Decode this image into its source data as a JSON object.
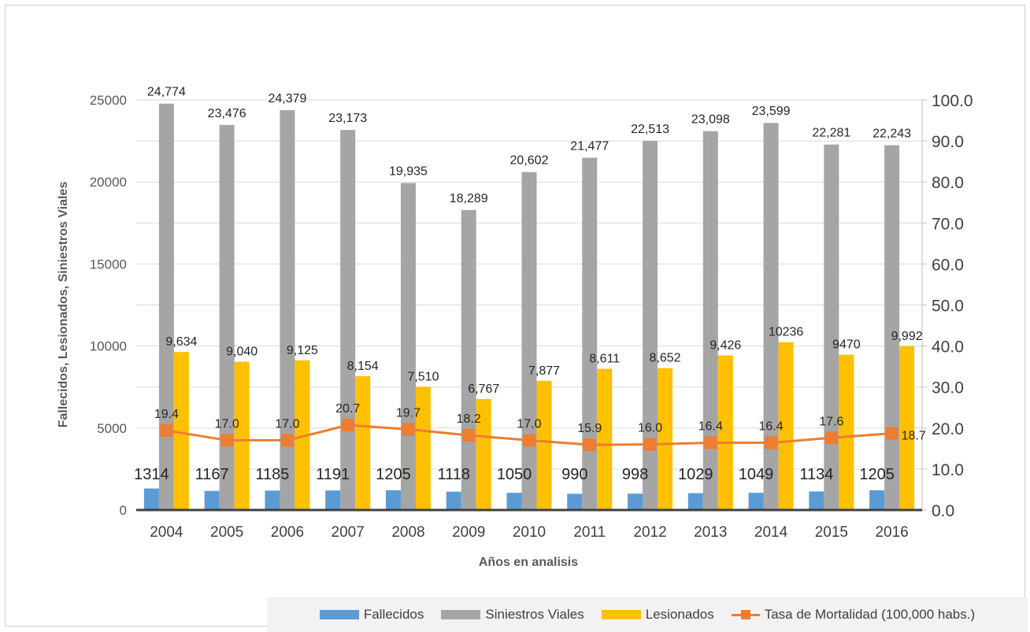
{
  "chart_data": {
    "type": "bar",
    "title": "",
    "xlabel": "Años en analisis",
    "ylabel": "Fallecidos,  Lesionados, Siniestros Viales",
    "categories": [
      "2004",
      "2005",
      "2006",
      "2007",
      "2008",
      "2009",
      "2010",
      "2011",
      "2012",
      "2013",
      "2014",
      "2015",
      "2016"
    ],
    "ylim": [
      0,
      25000
    ],
    "yticks": [
      "0",
      "5000",
      "10000",
      "15000",
      "20000",
      "25000"
    ],
    "y2lim": [
      0,
      100
    ],
    "y2ticks": [
      "0.0",
      "10.0",
      "20.0",
      "30.0",
      "40.0",
      "50.0",
      "60.0",
      "70.0",
      "80.0",
      "90.0",
      "100.0"
    ],
    "grid": true,
    "legend_position": "bottom-right",
    "series": [
      {
        "name": "Fallecidos",
        "type": "bar",
        "axis": "left",
        "color": "#5b9bd5",
        "values": [
          1314,
          1167,
          1185,
          1191,
          1205,
          1118,
          1050,
          990,
          998,
          1029,
          1049,
          1134,
          1205
        ],
        "labels": [
          "1314",
          "1167",
          "1185",
          "1191",
          "1205",
          "1118",
          "1050",
          "990",
          "998",
          "1029",
          "1049",
          "1134",
          "1205"
        ]
      },
      {
        "name": "Siniestros Viales",
        "type": "bar",
        "axis": "left",
        "color": "#a5a5a5",
        "values": [
          24774,
          23476,
          24379,
          23173,
          19935,
          18289,
          20602,
          21477,
          22513,
          23098,
          23599,
          22281,
          22243
        ],
        "labels": [
          "24,774",
          "23,476",
          "24,379",
          "23,173",
          "19,935",
          "18,289",
          "20,602",
          "21,477",
          "22,513",
          "23,098",
          "23,599",
          "22,281",
          "22,243"
        ]
      },
      {
        "name": "Lesionados",
        "type": "bar",
        "axis": "left",
        "color": "#ffc000",
        "values": [
          9634,
          9040,
          9125,
          8154,
          7510,
          6767,
          7877,
          8611,
          8652,
          9426,
          10236,
          9470,
          9992
        ],
        "labels": [
          "9,634",
          "9,040",
          "9,125",
          "8,154",
          "7,510",
          "6,767",
          "7,877",
          "8,611",
          "8,652",
          "9,426",
          "10236",
          "9470",
          "9,992"
        ]
      },
      {
        "name": "Tasa de Mortalidad (100,000 habs.)",
        "type": "line",
        "axis": "right",
        "color": "#ed7d31",
        "values": [
          19.4,
          17.0,
          17.0,
          20.7,
          19.7,
          18.2,
          17.0,
          15.9,
          16.0,
          16.4,
          16.4,
          17.6,
          18.7
        ],
        "labels": [
          "19.4",
          "17.0",
          "17.0",
          "20.7",
          "19.7",
          "18.2",
          "17.0",
          "15.9",
          "16.0",
          "16.4",
          "16.4",
          "17.6",
          "18.7"
        ]
      }
    ]
  }
}
